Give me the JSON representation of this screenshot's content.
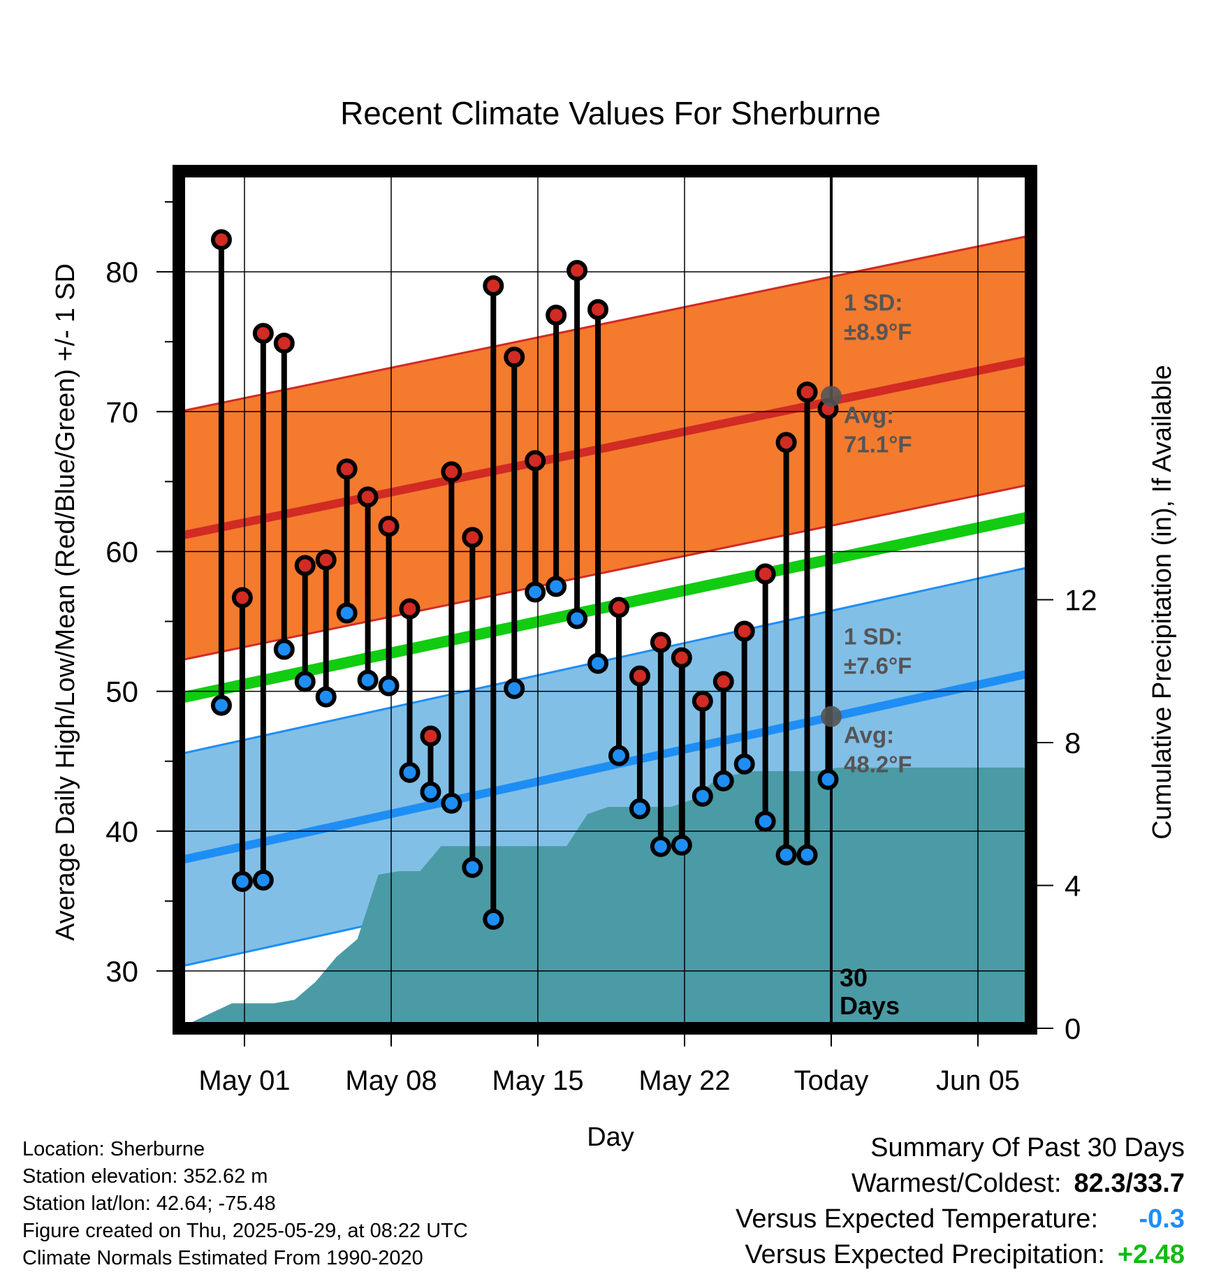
{
  "chart_data": {
    "type": "line",
    "title": "Recent Climate Values For Sherburne",
    "xlabel": "Day",
    "ylabel": "Average Daily High/Low/Mean (Red/Blue/Green) +/- 1 SD",
    "y2label": "Cumulative Precipitation (in), If Available",
    "x_tick_labels": [
      "May 01",
      "May 08",
      "May 15",
      "May 22",
      "Today",
      "Jun 05"
    ],
    "y_ticks": [
      30,
      40,
      50,
      60,
      70,
      80
    ],
    "y2_ticks": [
      0,
      4,
      8,
      12
    ],
    "ylim": [
      25.9,
      87.2
    ],
    "y2lim": [
      0,
      24
    ],
    "days_window_label": [
      "30",
      "Days"
    ],
    "normals": {
      "high_avg": [
        61.1,
        73.7
      ],
      "high_sd": 8.9,
      "low_avg": [
        37.9,
        51.3
      ],
      "low_sd": 7.6,
      "mean_avg": [
        49.5,
        62.5
      ]
    },
    "annotations": {
      "high": {
        "sd_label": "1 SD:",
        "sd_value": "±8.9°F",
        "avg_label": "Avg:",
        "avg_value": "71.1°F",
        "avg": 71.1
      },
      "low": {
        "sd_label": "1 SD:",
        "sd_value": "±7.6°F",
        "avg_label": "Avg:",
        "avg_value": "48.2°F",
        "avg": 48.2
      }
    },
    "highs": [
      82.3,
      56.7,
      75.6,
      74.9,
      59.0,
      59.4,
      65.9,
      63.9,
      61.8,
      55.9,
      46.8,
      65.7,
      61.0,
      79.0,
      73.9,
      66.5,
      76.9,
      80.1,
      77.3,
      56.0,
      51.1,
      53.5,
      52.4,
      49.3,
      50.7,
      54.3,
      58.4,
      67.8,
      71.4,
      70.2
    ],
    "lows": [
      49.0,
      36.4,
      36.5,
      53.0,
      50.7,
      49.6,
      55.6,
      50.8,
      50.4,
      44.2,
      42.8,
      42.0,
      37.4,
      33.7,
      50.2,
      57.1,
      57.5,
      55.2,
      52.0,
      45.4,
      41.6,
      38.9,
      39.0,
      42.5,
      43.6,
      44.8,
      40.7,
      38.3,
      38.3,
      43.7
    ],
    "cumulative_precip": [
      0.0,
      0.7,
      0.7,
      0.7,
      0.8,
      1.3,
      2.0,
      2.5,
      4.3,
      4.4,
      4.4,
      5.1,
      5.1,
      5.1,
      5.1,
      5.1,
      5.1,
      5.1,
      6.0,
      6.2,
      6.2,
      6.2,
      6.2,
      6.4,
      6.9,
      7.1,
      7.2,
      7.2,
      7.2,
      7.2,
      7.3
    ]
  },
  "info": {
    "location": "Location: Sherburne",
    "elevation": "Station elevation: 352.62 m",
    "latlon": "Station lat/lon: 42.64; -75.48",
    "created": "Figure created on Thu, 2025-05-29, at 08:22 UTC",
    "normals": "Climate Normals Estimated From 1990-2020"
  },
  "summary": {
    "title": "Summary Of Past 30 Days",
    "warmest_coldest_label": "Warmest/Coldest:",
    "warmest_coldest_value": "82.3/33.7",
    "temp_label": "Versus Expected Temperature:",
    "temp_value": "-0.3",
    "precip_label": "Versus Expected Precipitation:",
    "precip_value": "+2.48"
  },
  "colors": {
    "high_band": "#f47a2e",
    "high_line": "#d12b24",
    "low_band": "#82bfe6",
    "low_line": "#1e8ef5",
    "mean_line": "#11cc11",
    "precip_fill": "#4a9ba5",
    "high_marker": "#d12b24",
    "low_marker": "#1e8ef5",
    "annotation_text": "#555555",
    "temp_anomaly": "#1e8ef5",
    "precip_anomaly": "#11bb11"
  }
}
